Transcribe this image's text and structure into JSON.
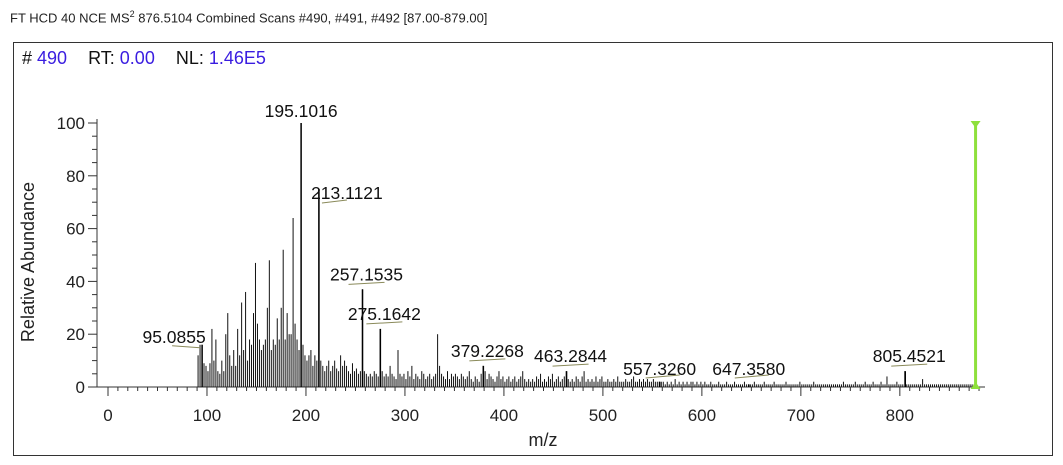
{
  "header": {
    "prefix": "FT HCD 40 NCE MS",
    "sup": "2",
    "rest": " 876.5104 Combined Scans #490, #491, #492 [87.00-879.00]"
  },
  "info": {
    "scan_label": "#",
    "scan_value": "490",
    "rt_label": "RT:",
    "rt_value": "0.00",
    "nl_label": "NL:",
    "nl_value": "1.46E5"
  },
  "chart_data": {
    "type": "bar",
    "xlabel": "m/z",
    "ylabel": "Relative Abundance",
    "xlim": [
      87,
      879
    ],
    "ylim": [
      0,
      100
    ],
    "x_ticks": [
      0,
      100,
      200,
      300,
      400,
      500,
      600,
      700,
      800
    ],
    "y_ticks": [
      0,
      20,
      40,
      60,
      80,
      100
    ],
    "precursor": {
      "mz": 876.5104,
      "color": "#8ee03c"
    },
    "labeled_peaks": [
      {
        "mz": 95.0855,
        "intensity": 16,
        "label": "95.0855"
      },
      {
        "mz": 195.1016,
        "intensity": 100,
        "label": "195.1016"
      },
      {
        "mz": 213.1121,
        "intensity": 75,
        "label": "213.1121"
      },
      {
        "mz": 257.1535,
        "intensity": 37,
        "label": "257.1535"
      },
      {
        "mz": 275.1642,
        "intensity": 22,
        "label": "275.1642"
      },
      {
        "mz": 379.2268,
        "intensity": 8,
        "label": "379.2268"
      },
      {
        "mz": 463.2844,
        "intensity": 6,
        "label": "463.2844"
      },
      {
        "mz": 557.326,
        "intensity": 2,
        "label": "557.3260"
      },
      {
        "mz": 647.358,
        "intensity": 1,
        "label": "647.3580"
      },
      {
        "mz": 805.4521,
        "intensity": 6,
        "label": "805.4521"
      }
    ],
    "peaks": [
      [
        91,
        12
      ],
      [
        93,
        16
      ],
      [
        95,
        16
      ],
      [
        97,
        9
      ],
      [
        99,
        8
      ],
      [
        101,
        6
      ],
      [
        103,
        9
      ],
      [
        105,
        22
      ],
      [
        107,
        10
      ],
      [
        109,
        18
      ],
      [
        111,
        6
      ],
      [
        113,
        5
      ],
      [
        115,
        10
      ],
      [
        117,
        6
      ],
      [
        119,
        20
      ],
      [
        121,
        28
      ],
      [
        123,
        12
      ],
      [
        125,
        8
      ],
      [
        127,
        14
      ],
      [
        129,
        8
      ],
      [
        131,
        22
      ],
      [
        133,
        12
      ],
      [
        135,
        32
      ],
      [
        137,
        14
      ],
      [
        139,
        36
      ],
      [
        141,
        10
      ],
      [
        143,
        18
      ],
      [
        145,
        16
      ],
      [
        147,
        28
      ],
      [
        149,
        47
      ],
      [
        151,
        24
      ],
      [
        153,
        18
      ],
      [
        155,
        14
      ],
      [
        157,
        16
      ],
      [
        159,
        18
      ],
      [
        161,
        30
      ],
      [
        163,
        48
      ],
      [
        165,
        14
      ],
      [
        167,
        18
      ],
      [
        169,
        16
      ],
      [
        171,
        26
      ],
      [
        173,
        18
      ],
      [
        175,
        30
      ],
      [
        177,
        52
      ],
      [
        179,
        18
      ],
      [
        181,
        28
      ],
      [
        183,
        20
      ],
      [
        185,
        20
      ],
      [
        187,
        64
      ],
      [
        189,
        24
      ],
      [
        191,
        18
      ],
      [
        193,
        14
      ],
      [
        195,
        100
      ],
      [
        197,
        16
      ],
      [
        199,
        12
      ],
      [
        201,
        10
      ],
      [
        203,
        12
      ],
      [
        205,
        14
      ],
      [
        207,
        8
      ],
      [
        209,
        12
      ],
      [
        211,
        10
      ],
      [
        213,
        75
      ],
      [
        215,
        10
      ],
      [
        217,
        8
      ],
      [
        219,
        6
      ],
      [
        221,
        8
      ],
      [
        223,
        10
      ],
      [
        225,
        6
      ],
      [
        227,
        8
      ],
      [
        229,
        10
      ],
      [
        231,
        7
      ],
      [
        233,
        6
      ],
      [
        235,
        12
      ],
      [
        237,
        8
      ],
      [
        239,
        10
      ],
      [
        241,
        8
      ],
      [
        243,
        6
      ],
      [
        245,
        5
      ],
      [
        247,
        9
      ],
      [
        249,
        6
      ],
      [
        251,
        7
      ],
      [
        253,
        5
      ],
      [
        255,
        6
      ],
      [
        257,
        37
      ],
      [
        259,
        6
      ],
      [
        261,
        5
      ],
      [
        263,
        4
      ],
      [
        265,
        5
      ],
      [
        267,
        4
      ],
      [
        269,
        6
      ],
      [
        271,
        5
      ],
      [
        273,
        4
      ],
      [
        275,
        22
      ],
      [
        277,
        6
      ],
      [
        279,
        4
      ],
      [
        281,
        5
      ],
      [
        283,
        4
      ],
      [
        285,
        8
      ],
      [
        287,
        5
      ],
      [
        289,
        4
      ],
      [
        291,
        3
      ],
      [
        293,
        14
      ],
      [
        295,
        5
      ],
      [
        297,
        4
      ],
      [
        299,
        5
      ],
      [
        301,
        3
      ],
      [
        303,
        6
      ],
      [
        305,
        4
      ],
      [
        307,
        8
      ],
      [
        309,
        3
      ],
      [
        311,
        5
      ],
      [
        313,
        4
      ],
      [
        315,
        3
      ],
      [
        317,
        6
      ],
      [
        319,
        5
      ],
      [
        321,
        3
      ],
      [
        323,
        4
      ],
      [
        325,
        5
      ],
      [
        327,
        3
      ],
      [
        329,
        4
      ],
      [
        331,
        5
      ],
      [
        333,
        20
      ],
      [
        335,
        8
      ],
      [
        337,
        5
      ],
      [
        339,
        4
      ],
      [
        341,
        3
      ],
      [
        343,
        6
      ],
      [
        345,
        3
      ],
      [
        347,
        5
      ],
      [
        349,
        4
      ],
      [
        351,
        5
      ],
      [
        353,
        4
      ],
      [
        355,
        3
      ],
      [
        357,
        5
      ],
      [
        359,
        4
      ],
      [
        361,
        3
      ],
      [
        363,
        4
      ],
      [
        365,
        6
      ],
      [
        367,
        3
      ],
      [
        369,
        2
      ],
      [
        371,
        4
      ],
      [
        373,
        3
      ],
      [
        375,
        2
      ],
      [
        377,
        5
      ],
      [
        379,
        8
      ],
      [
        381,
        6
      ],
      [
        383,
        3
      ],
      [
        385,
        5
      ],
      [
        387,
        4
      ],
      [
        389,
        3
      ],
      [
        391,
        2
      ],
      [
        393,
        4
      ],
      [
        395,
        6
      ],
      [
        397,
        3
      ],
      [
        399,
        4
      ],
      [
        401,
        2
      ],
      [
        403,
        3
      ],
      [
        405,
        4
      ],
      [
        407,
        2
      ],
      [
        409,
        3
      ],
      [
        411,
        4
      ],
      [
        413,
        2
      ],
      [
        415,
        3
      ],
      [
        417,
        4
      ],
      [
        419,
        6
      ],
      [
        421,
        3
      ],
      [
        423,
        2
      ],
      [
        425,
        3
      ],
      [
        427,
        2
      ],
      [
        429,
        3
      ],
      [
        431,
        2
      ],
      [
        433,
        4
      ],
      [
        435,
        3
      ],
      [
        437,
        5
      ],
      [
        439,
        2
      ],
      [
        441,
        3
      ],
      [
        443,
        2
      ],
      [
        445,
        4
      ],
      [
        447,
        3
      ],
      [
        449,
        5
      ],
      [
        451,
        2
      ],
      [
        453,
        3
      ],
      [
        455,
        4
      ],
      [
        457,
        2
      ],
      [
        459,
        3
      ],
      [
        461,
        4
      ],
      [
        463,
        6
      ],
      [
        465,
        3
      ],
      [
        467,
        2
      ],
      [
        469,
        3
      ],
      [
        471,
        2
      ],
      [
        473,
        4
      ],
      [
        475,
        3
      ],
      [
        477,
        2
      ],
      [
        479,
        4
      ],
      [
        481,
        6
      ],
      [
        483,
        2
      ],
      [
        485,
        3
      ],
      [
        487,
        2
      ],
      [
        489,
        3
      ],
      [
        491,
        2
      ],
      [
        493,
        4
      ],
      [
        495,
        2
      ],
      [
        497,
        3
      ],
      [
        499,
        4
      ],
      [
        501,
        2
      ],
      [
        503,
        2
      ],
      [
        505,
        3
      ],
      [
        507,
        2
      ],
      [
        509,
        2
      ],
      [
        511,
        3
      ],
      [
        513,
        2
      ],
      [
        515,
        4
      ],
      [
        517,
        2
      ],
      [
        519,
        2
      ],
      [
        521,
        2
      ],
      [
        523,
        3
      ],
      [
        525,
        2
      ],
      [
        527,
        2
      ],
      [
        529,
        3
      ],
      [
        531,
        4
      ],
      [
        533,
        2
      ],
      [
        535,
        2
      ],
      [
        537,
        3
      ],
      [
        539,
        2
      ],
      [
        541,
        3
      ],
      [
        543,
        2
      ],
      [
        545,
        3
      ],
      [
        547,
        2
      ],
      [
        549,
        2
      ],
      [
        551,
        3
      ],
      [
        553,
        2
      ],
      [
        555,
        2
      ],
      [
        557,
        2
      ],
      [
        559,
        2
      ],
      [
        561,
        2
      ],
      [
        563,
        1
      ],
      [
        565,
        2
      ],
      [
        567,
        1
      ],
      [
        569,
        2
      ],
      [
        571,
        1
      ],
      [
        573,
        3
      ],
      [
        575,
        1
      ],
      [
        577,
        2
      ],
      [
        579,
        1
      ],
      [
        581,
        2
      ],
      [
        583,
        1
      ],
      [
        585,
        2
      ],
      [
        587,
        1
      ],
      [
        589,
        2
      ],
      [
        591,
        2
      ],
      [
        593,
        1
      ],
      [
        595,
        2
      ],
      [
        597,
        1
      ],
      [
        599,
        2
      ],
      [
        601,
        1
      ],
      [
        603,
        2
      ],
      [
        605,
        1
      ],
      [
        607,
        1
      ],
      [
        609,
        2
      ],
      [
        611,
        1
      ],
      [
        613,
        1
      ],
      [
        615,
        1
      ],
      [
        617,
        2
      ],
      [
        619,
        1
      ],
      [
        621,
        1
      ],
      [
        623,
        1
      ],
      [
        625,
        2
      ],
      [
        627,
        1
      ],
      [
        629,
        1
      ],
      [
        631,
        1
      ],
      [
        633,
        2
      ],
      [
        635,
        1
      ],
      [
        637,
        1
      ],
      [
        639,
        1
      ],
      [
        641,
        1
      ],
      [
        643,
        2
      ],
      [
        645,
        1
      ],
      [
        647,
        1
      ],
      [
        649,
        1
      ],
      [
        651,
        1
      ],
      [
        653,
        2
      ],
      [
        655,
        1
      ],
      [
        657,
        1
      ],
      [
        659,
        1
      ],
      [
        661,
        1
      ],
      [
        663,
        2
      ],
      [
        665,
        1
      ],
      [
        667,
        1
      ],
      [
        669,
        1
      ],
      [
        671,
        1
      ],
      [
        673,
        2
      ],
      [
        675,
        1
      ],
      [
        677,
        1
      ],
      [
        679,
        1
      ],
      [
        681,
        1
      ],
      [
        683,
        1
      ],
      [
        685,
        2
      ],
      [
        687,
        1
      ],
      [
        689,
        1
      ],
      [
        691,
        1
      ],
      [
        693,
        1
      ],
      [
        695,
        1
      ],
      [
        697,
        1
      ],
      [
        699,
        2
      ],
      [
        701,
        1
      ],
      [
        703,
        1
      ],
      [
        705,
        1
      ],
      [
        707,
        1
      ],
      [
        709,
        1
      ],
      [
        711,
        1
      ],
      [
        713,
        2
      ],
      [
        715,
        1
      ],
      [
        717,
        1
      ],
      [
        719,
        1
      ],
      [
        721,
        1
      ],
      [
        723,
        1
      ],
      [
        725,
        1
      ],
      [
        727,
        1
      ],
      [
        729,
        1
      ],
      [
        731,
        1
      ],
      [
        733,
        1
      ],
      [
        735,
        1
      ],
      [
        737,
        1
      ],
      [
        739,
        1
      ],
      [
        741,
        1
      ],
      [
        743,
        2
      ],
      [
        745,
        1
      ],
      [
        747,
        1
      ],
      [
        749,
        1
      ],
      [
        751,
        1
      ],
      [
        753,
        1
      ],
      [
        755,
        2
      ],
      [
        757,
        1
      ],
      [
        759,
        1
      ],
      [
        761,
        1
      ],
      [
        763,
        1
      ],
      [
        765,
        2
      ],
      [
        767,
        1
      ],
      [
        769,
        1
      ],
      [
        771,
        1
      ],
      [
        773,
        2
      ],
      [
        775,
        1
      ],
      [
        777,
        1
      ],
      [
        779,
        1
      ],
      [
        781,
        2
      ],
      [
        783,
        1
      ],
      [
        785,
        1
      ],
      [
        787,
        4
      ],
      [
        789,
        1
      ],
      [
        791,
        1
      ],
      [
        793,
        1
      ],
      [
        795,
        1
      ],
      [
        797,
        2
      ],
      [
        799,
        1
      ],
      [
        801,
        1
      ],
      [
        803,
        1
      ],
      [
        805,
        6
      ],
      [
        807,
        1
      ],
      [
        809,
        1
      ],
      [
        811,
        1
      ],
      [
        813,
        1
      ],
      [
        815,
        1
      ],
      [
        817,
        1
      ],
      [
        819,
        1
      ],
      [
        821,
        1
      ],
      [
        823,
        3
      ],
      [
        825,
        1
      ],
      [
        827,
        1
      ],
      [
        829,
        1
      ],
      [
        831,
        1
      ],
      [
        833,
        1
      ],
      [
        835,
        1
      ],
      [
        837,
        1
      ],
      [
        839,
        1
      ],
      [
        841,
        1
      ],
      [
        843,
        1
      ],
      [
        845,
        1
      ],
      [
        847,
        1
      ],
      [
        849,
        1
      ],
      [
        851,
        1
      ],
      [
        853,
        1
      ],
      [
        855,
        1
      ],
      [
        857,
        1
      ],
      [
        859,
        1
      ],
      [
        861,
        1
      ],
      [
        863,
        1
      ],
      [
        865,
        1
      ],
      [
        867,
        1
      ],
      [
        869,
        1
      ],
      [
        871,
        1
      ],
      [
        873,
        1
      ],
      [
        875,
        1
      ]
    ]
  }
}
